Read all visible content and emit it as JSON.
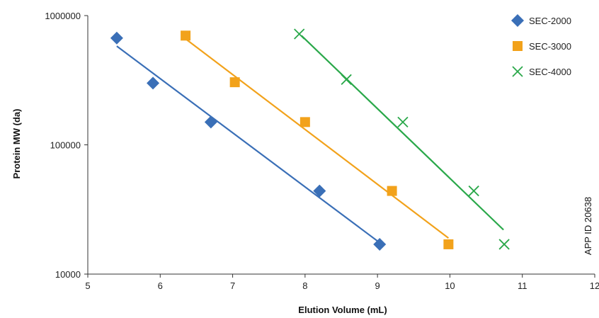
{
  "chart_data": {
    "type": "scatter",
    "title": "",
    "xlabel": "Elution Volume (mL)",
    "ylabel": "Protein MW (da)",
    "xlim": [
      5,
      12
    ],
    "ylim": [
      10000,
      1000000
    ],
    "y_scale": "log",
    "x_ticks": [
      "5",
      "6",
      "7",
      "8",
      "9",
      "10",
      "11",
      "12"
    ],
    "y_ticks": [
      "10000",
      "100000",
      "1000000"
    ],
    "grid": false,
    "legend_position": "top-right",
    "side_note": "APP ID 20638",
    "series": [
      {
        "name": "SEC-2000",
        "marker": "diamond",
        "color": "#3a6fb7",
        "x": [
          5.4,
          5.9,
          6.7,
          8.2,
          9.03
        ],
        "y": [
          670000,
          300000,
          150000,
          44000,
          17000
        ],
        "trendline": {
          "x": [
            5.4,
            9.03
          ],
          "y": [
            580000,
            17500
          ]
        }
      },
      {
        "name": "SEC-3000",
        "marker": "square",
        "color": "#f2a21b",
        "x": [
          6.35,
          7.03,
          8.0,
          9.2,
          9.98
        ],
        "y": [
          700000,
          305000,
          150000,
          44000,
          17000
        ],
        "trendline": {
          "x": [
            6.35,
            9.98
          ],
          "y": [
            660000,
            19000
          ]
        }
      },
      {
        "name": "SEC-4000",
        "marker": "x",
        "color": "#2aa84a",
        "x": [
          7.92,
          8.57,
          9.35,
          10.33,
          10.75
        ],
        "y": [
          720000,
          320000,
          150000,
          44000,
          17000
        ],
        "trendline": {
          "x": [
            7.95,
            10.74
          ],
          "y": [
            700000,
            22000
          ]
        }
      }
    ]
  }
}
